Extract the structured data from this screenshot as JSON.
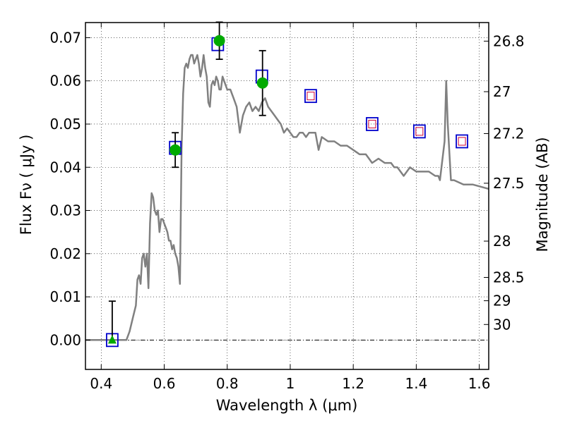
{
  "chart_data": {
    "type": "scatter",
    "xlabel": "Wavelength  λ (μm)",
    "ylabel": "Flux  Fν  ( μJy )",
    "ylabel_right": "Magnitude (AB)",
    "xlim": [
      0.35,
      1.63
    ],
    "ylim": [
      -0.0068,
      0.0735
    ],
    "x_ticks": [
      0.4,
      0.6,
      0.8,
      1.0,
      1.2,
      1.4,
      1.6
    ],
    "x_tick_labels": [
      "0.4",
      "0.6",
      "0.8",
      "1",
      "1.2",
      "1.4",
      "1.6"
    ],
    "y_ticks": [
      0.0,
      0.01,
      0.02,
      0.03,
      0.04,
      0.05,
      0.06,
      0.07
    ],
    "y_tick_labels": [
      "0.00",
      "0.01",
      "0.02",
      "0.03",
      "0.04",
      "0.05",
      "0.06",
      "0.07"
    ],
    "right_ticks": [
      {
        "label": "26.8",
        "flux": 0.0692
      },
      {
        "label": "27",
        "flux": 0.0575
      },
      {
        "label": "27.2",
        "flux": 0.0478
      },
      {
        "label": "27.5",
        "flux": 0.0363
      },
      {
        "label": "28",
        "flux": 0.0229
      },
      {
        "label": "28.5",
        "flux": 0.0145
      },
      {
        "label": "29",
        "flux": 0.0091
      },
      {
        "label": "30",
        "flux": 0.0036
      }
    ],
    "grid": true,
    "colors": {
      "model": "#808080",
      "box": "#0000cc",
      "small_box": "#cc0033",
      "detection": "#00aa00",
      "errorbar": "#000000"
    },
    "series": [
      {
        "kind": "model_sed_line",
        "x": [
          0.35,
          0.48,
          0.49,
          0.5,
          0.51,
          0.515,
          0.52,
          0.525,
          0.53,
          0.535,
          0.54,
          0.545,
          0.55,
          0.555,
          0.56,
          0.565,
          0.57,
          0.575,
          0.58,
          0.585,
          0.59,
          0.595,
          0.6,
          0.605,
          0.61,
          0.615,
          0.62,
          0.625,
          0.63,
          0.635,
          0.64,
          0.645,
          0.65,
          0.655,
          0.66,
          0.665,
          0.67,
          0.675,
          0.68,
          0.685,
          0.69,
          0.695,
          0.7,
          0.705,
          0.71,
          0.715,
          0.72,
          0.725,
          0.73,
          0.735,
          0.74,
          0.745,
          0.75,
          0.755,
          0.76,
          0.765,
          0.77,
          0.775,
          0.78,
          0.785,
          0.79,
          0.795,
          0.8,
          0.81,
          0.815,
          0.82,
          0.83,
          0.835,
          0.84,
          0.85,
          0.86,
          0.87,
          0.88,
          0.89,
          0.9,
          0.91,
          0.92,
          0.93,
          0.94,
          0.95,
          0.96,
          0.97,
          0.98,
          0.99,
          1.0,
          1.01,
          1.02,
          1.03,
          1.04,
          1.05,
          1.06,
          1.08,
          1.09,
          1.1,
          1.12,
          1.14,
          1.16,
          1.18,
          1.2,
          1.22,
          1.24,
          1.25,
          1.26,
          1.28,
          1.3,
          1.32,
          1.33,
          1.34,
          1.36,
          1.38,
          1.4,
          1.42,
          1.44,
          1.46,
          1.47,
          1.475,
          1.48,
          1.49,
          1.495,
          1.5,
          1.51,
          1.52,
          1.55,
          1.58,
          1.63
        ],
        "y": [
          0.0,
          0.0,
          0.002,
          0.005,
          0.008,
          0.014,
          0.015,
          0.013,
          0.019,
          0.02,
          0.017,
          0.02,
          0.012,
          0.027,
          0.034,
          0.033,
          0.03,
          0.029,
          0.03,
          0.025,
          0.028,
          0.028,
          0.027,
          0.026,
          0.025,
          0.023,
          0.023,
          0.021,
          0.022,
          0.02,
          0.019,
          0.017,
          0.013,
          0.044,
          0.057,
          0.063,
          0.064,
          0.063,
          0.065,
          0.066,
          0.066,
          0.064,
          0.065,
          0.066,
          0.064,
          0.061,
          0.063,
          0.066,
          0.063,
          0.061,
          0.055,
          0.054,
          0.059,
          0.06,
          0.059,
          0.061,
          0.06,
          0.058,
          0.058,
          0.061,
          0.06,
          0.059,
          0.058,
          0.058,
          0.057,
          0.056,
          0.054,
          0.051,
          0.048,
          0.052,
          0.054,
          0.055,
          0.053,
          0.054,
          0.053,
          0.055,
          0.056,
          0.054,
          0.053,
          0.052,
          0.051,
          0.05,
          0.048,
          0.049,
          0.048,
          0.047,
          0.047,
          0.048,
          0.048,
          0.047,
          0.048,
          0.048,
          0.044,
          0.047,
          0.046,
          0.046,
          0.045,
          0.045,
          0.044,
          0.043,
          0.043,
          0.042,
          0.041,
          0.042,
          0.041,
          0.041,
          0.04,
          0.04,
          0.038,
          0.04,
          0.039,
          0.039,
          0.039,
          0.038,
          0.038,
          0.037,
          0.04,
          0.046,
          0.06,
          0.05,
          0.037,
          0.037,
          0.036,
          0.036,
          0.035
        ]
      },
      {
        "kind": "model_boxes",
        "x": [
          0.435,
          0.635,
          0.77,
          0.91,
          1.065,
          1.26,
          1.41,
          1.545
        ],
        "y": [
          0.0,
          0.0445,
          0.0685,
          0.061,
          0.0565,
          0.05,
          0.0483,
          0.046
        ]
      },
      {
        "kind": "inner_boxes",
        "x": [
          1.065,
          1.26,
          1.41,
          1.545
        ],
        "y": [
          0.0565,
          0.05,
          0.0483,
          0.046
        ]
      },
      {
        "kind": "detections",
        "x": [
          0.635,
          0.775,
          0.912
        ],
        "y": [
          0.044,
          0.0693,
          0.0595
        ],
        "err_low": [
          0.004,
          0.0043,
          0.0075
        ],
        "err_high": [
          0.004,
          0.0043,
          0.0075
        ]
      },
      {
        "kind": "upper_limit",
        "x": [
          0.435
        ],
        "y": [
          0.0
        ],
        "err_low": [
          0.0
        ],
        "err_high": [
          0.009
        ]
      }
    ]
  }
}
